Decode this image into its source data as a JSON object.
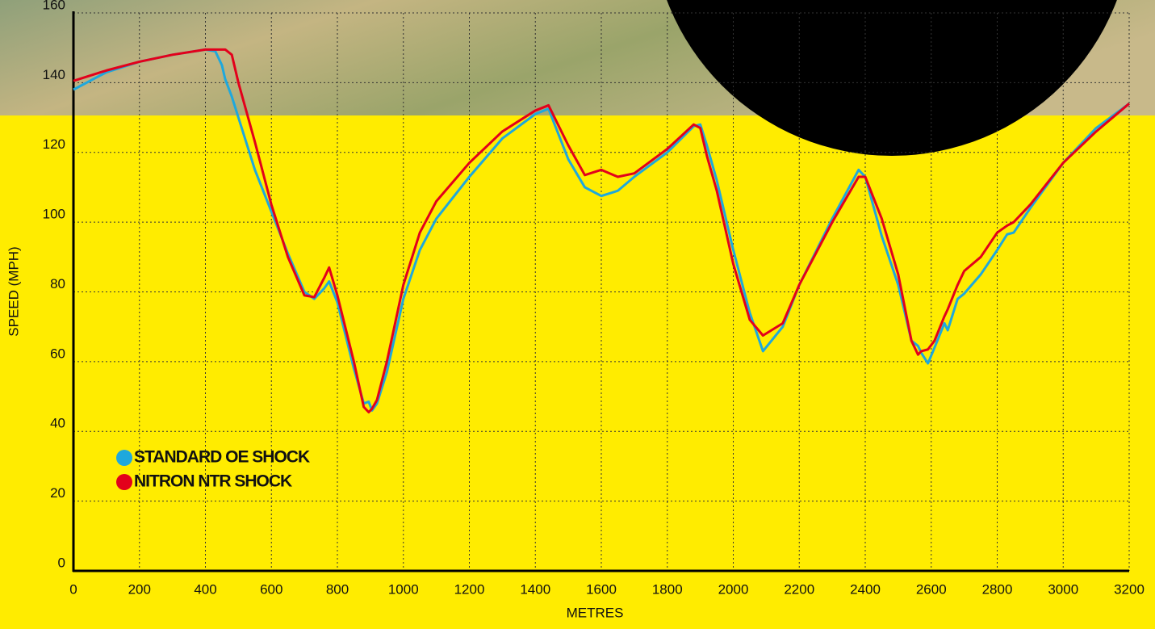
{
  "chart_data": {
    "type": "line",
    "xlabel": "METRES",
    "ylabel": "SPEED (MPH)",
    "x": [
      0,
      100,
      200,
      300,
      400,
      430,
      450,
      460,
      480,
      500,
      550,
      600,
      650,
      700,
      730,
      760,
      775,
      800,
      850,
      880,
      895,
      905,
      920,
      950,
      1000,
      1050,
      1100,
      1200,
      1300,
      1400,
      1440,
      1500,
      1550,
      1600,
      1650,
      1700,
      1800,
      1880,
      1900,
      1920,
      1950,
      2000,
      2050,
      2090,
      2150,
      2200,
      2300,
      2380,
      2400,
      2450,
      2500,
      2540,
      2560,
      2570,
      2590,
      2610,
      2640,
      2650,
      2680,
      2700,
      2750,
      2800,
      2830,
      2850,
      2900,
      3000,
      3100,
      3200
    ],
    "series": [
      {
        "name": "STANDARD OE SHOCK",
        "color": "#1ea8dd",
        "values": [
          138,
          143,
          146,
          148,
          149.5,
          149,
          145,
          141,
          136,
          130,
          115,
          103,
          91,
          80,
          78,
          81,
          83,
          77,
          58,
          48,
          48.5,
          46,
          48,
          57,
          78,
          92,
          101,
          113,
          124,
          131,
          132.5,
          118,
          110,
          107.5,
          109,
          113,
          120,
          127.5,
          128,
          122,
          112,
          92,
          74,
          63,
          70,
          82,
          101,
          115,
          113,
          96,
          82,
          66,
          64.5,
          62.5,
          59.5,
          64,
          71,
          69,
          78,
          79.5,
          85,
          92,
          96.5,
          97,
          104,
          117,
          127,
          134
        ]
      },
      {
        "name": "NITRON NTR SHOCK",
        "color": "#e3001b",
        "values": [
          140.5,
          143.5,
          146,
          148,
          149.5,
          149.5,
          149.5,
          149.5,
          148,
          140,
          123,
          105,
          90,
          79,
          78.5,
          84,
          87,
          79,
          60,
          47,
          45.5,
          46.5,
          49,
          60,
          82,
          97,
          106,
          117,
          126,
          132,
          133.5,
          122,
          113.5,
          115,
          113,
          114,
          121,
          128,
          127,
          119,
          109,
          88,
          72,
          67.5,
          71,
          82,
          100,
          113,
          113,
          101,
          85,
          66,
          62,
          63,
          63.5,
          66,
          73,
          75,
          82,
          86,
          90,
          97,
          99,
          100,
          105,
          117,
          126,
          134
        ]
      }
    ],
    "xlim": [
      0,
      3200
    ],
    "ylim": [
      0,
      160
    ],
    "xticks": [
      0,
      200,
      400,
      600,
      800,
      1000,
      1200,
      1400,
      1600,
      1800,
      2000,
      2200,
      2400,
      2600,
      2800,
      3000,
      3200
    ],
    "yticks": [
      0,
      20,
      40,
      60,
      80,
      100,
      120,
      140,
      160
    ],
    "grid": true,
    "legend_position": "lower left"
  }
}
